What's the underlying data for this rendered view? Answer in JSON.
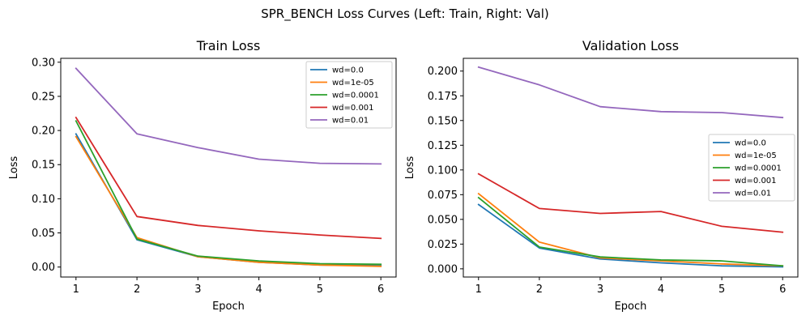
{
  "figure": {
    "suptitle": "SPR_BENCH Loss Curves (Left: Train, Right: Val)"
  },
  "colors": [
    "#1f77b4",
    "#ff7f0e",
    "#2ca02c",
    "#d62728",
    "#9467bd"
  ],
  "chart_data": [
    {
      "type": "line",
      "title": "Train Loss",
      "xlabel": "Epoch",
      "ylabel": "Loss",
      "xlim": [
        0.75,
        6.25
      ],
      "ylim": [
        -0.0146,
        0.3057
      ],
      "xticks": [
        1,
        2,
        3,
        4,
        5,
        6
      ],
      "yticks": [
        0.0,
        0.05,
        0.1,
        0.15,
        0.2,
        0.25,
        0.3
      ],
      "ytick_labels": [
        "0.00",
        "0.05",
        "0.10",
        "0.15",
        "0.20",
        "0.25",
        "0.30"
      ],
      "grid": false,
      "legend_position": "top-right",
      "x": [
        1,
        2,
        3,
        4,
        5,
        6
      ],
      "series": [
        {
          "name": "wd=0.0",
          "values": [
            0.195,
            0.04,
            0.015,
            0.007,
            0.003,
            0.002
          ]
        },
        {
          "name": "wd=1e-05",
          "values": [
            0.191,
            0.043,
            0.015,
            0.007,
            0.003,
            0.001
          ]
        },
        {
          "name": "wd=0.0001",
          "values": [
            0.214,
            0.041,
            0.016,
            0.009,
            0.005,
            0.004
          ]
        },
        {
          "name": "wd=0.001",
          "values": [
            0.219,
            0.074,
            0.061,
            0.053,
            0.047,
            0.042
          ]
        },
        {
          "name": "wd=0.01",
          "values": [
            0.291,
            0.195,
            0.175,
            0.158,
            0.152,
            0.151
          ]
        }
      ]
    },
    {
      "type": "line",
      "title": "Validation Loss",
      "xlabel": "Epoch",
      "ylabel": "Loss",
      "xlim": [
        0.75,
        6.25
      ],
      "ylim": [
        -0.0083,
        0.2129
      ],
      "xticks": [
        1,
        2,
        3,
        4,
        5,
        6
      ],
      "yticks": [
        0.0,
        0.025,
        0.05,
        0.075,
        0.1,
        0.125,
        0.15,
        0.175,
        0.2
      ],
      "ytick_labels": [
        "0.000",
        "0.025",
        "0.050",
        "0.075",
        "0.100",
        "0.125",
        "0.150",
        "0.175",
        "0.200"
      ],
      "grid": false,
      "legend_position": "center-right",
      "x": [
        1,
        2,
        3,
        4,
        5,
        6
      ],
      "series": [
        {
          "name": "wd=0.0",
          "values": [
            0.065,
            0.021,
            0.01,
            0.006,
            0.003,
            0.002
          ]
        },
        {
          "name": "wd=1e-05",
          "values": [
            0.076,
            0.027,
            0.011,
            0.008,
            0.005,
            0.003
          ]
        },
        {
          "name": "wd=0.0001",
          "values": [
            0.072,
            0.022,
            0.012,
            0.009,
            0.008,
            0.003
          ]
        },
        {
          "name": "wd=0.001",
          "values": [
            0.096,
            0.061,
            0.056,
            0.058,
            0.043,
            0.037
          ]
        },
        {
          "name": "wd=0.01",
          "values": [
            0.204,
            0.186,
            0.164,
            0.159,
            0.158,
            0.153
          ]
        }
      ]
    }
  ]
}
